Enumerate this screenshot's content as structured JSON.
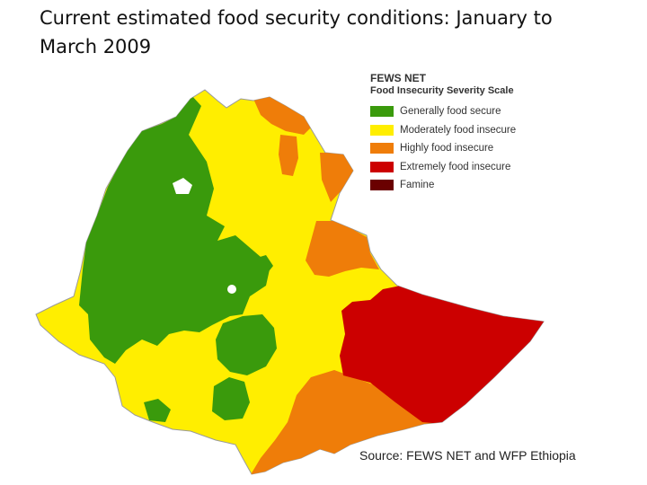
{
  "title": "Current estimated food security conditions: January to March 2009",
  "legend": {
    "brand": "FEWS NET",
    "title": "Food Insecurity Severity Scale",
    "items": [
      {
        "label": "Generally food secure",
        "color": "#3a9a0c"
      },
      {
        "label": "Moderately food insecure",
        "color": "#ffee00"
      },
      {
        "label": "Highly food insecure",
        "color": "#ef7d09"
      },
      {
        "label": "Extremely food insecure",
        "color": "#cc0000"
      },
      {
        "label": "Famine",
        "color": "#6a0000"
      }
    ]
  },
  "source": "Source: FEWS NET and WFP Ethiopia"
}
